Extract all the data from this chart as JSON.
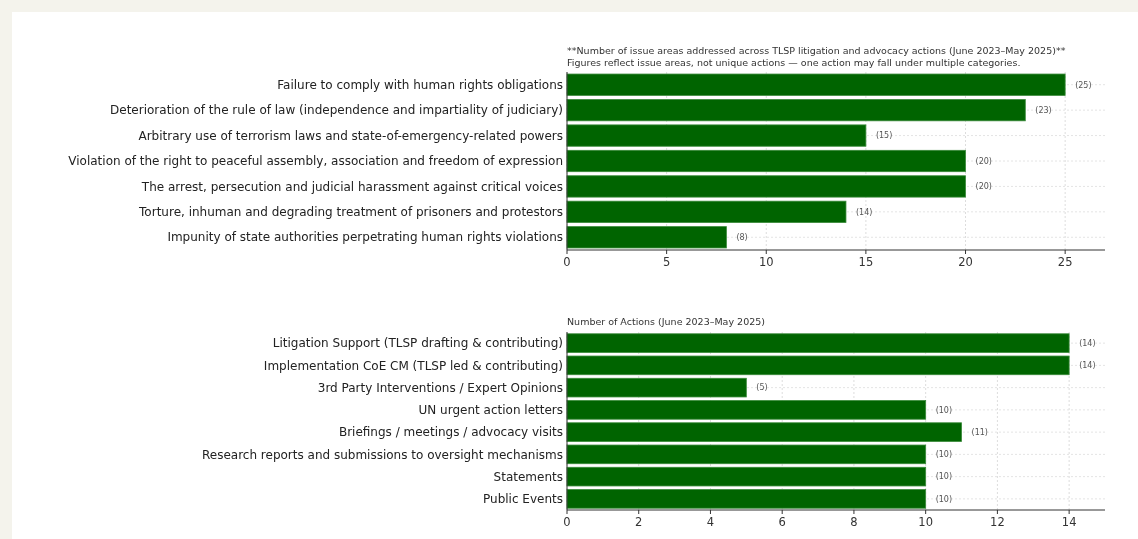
{
  "chart_data": [
    {
      "type": "bar",
      "orientation": "horizontal",
      "title": "**Number of issue areas addressed across TLSP litigation and advocacy actions (June 2023–May 2025)**",
      "subtitle": "Figures reflect issue areas, not unique actions — one action may fall under multiple categories.",
      "categories": [
        "Failure to comply with human rights obligations",
        "Deterioration of the rule of law (independence and impartiality of judiciary)",
        "Arbitrary use of terrorism laws and state-of-emergency-related powers",
        "Violation of the right to peaceful assembly, association and freedom of expression",
        "The arrest, persecution and judicial harassment against critical voices",
        "Torture, inhuman and degrading treatment of prisoners and protestors",
        "Impunity of state authorities perpetrating human rights violations"
      ],
      "values": [
        25,
        23,
        15,
        20,
        20,
        14,
        8
      ],
      "value_labels": [
        "(25)",
        "(23)",
        "(15)",
        "(20)",
        "(20)",
        "(14)",
        "(8)"
      ],
      "color": "#006400",
      "xlim": [
        0,
        27
      ],
      "xticks": [
        0,
        5,
        10,
        15,
        20,
        25
      ],
      "grid": true
    },
    {
      "type": "bar",
      "orientation": "horizontal",
      "title": "Number of Actions (June 2023–May 2025)",
      "categories": [
        "Litigation Support (TLSP drafting & contributing)",
        "Implementation CoE CM (TLSP led & contributing)",
        "3rd Party Interventions / Expert Opinions",
        "UN urgent action letters",
        "Briefings / meetings / advocacy visits",
        "Research reports and submissions to oversight mechanisms",
        "Statements",
        "Public Events"
      ],
      "values": [
        14,
        14,
        5,
        10,
        11,
        10,
        10,
        10
      ],
      "value_labels": [
        "(14)",
        "(14)",
        "(5)",
        "(10)",
        "(11)",
        "(10)",
        "(10)",
        "(10)"
      ],
      "color": "#006400",
      "xlim": [
        0,
        15
      ],
      "xticks": [
        0,
        2,
        4,
        6,
        8,
        10,
        12,
        14
      ],
      "grid": true
    }
  ]
}
